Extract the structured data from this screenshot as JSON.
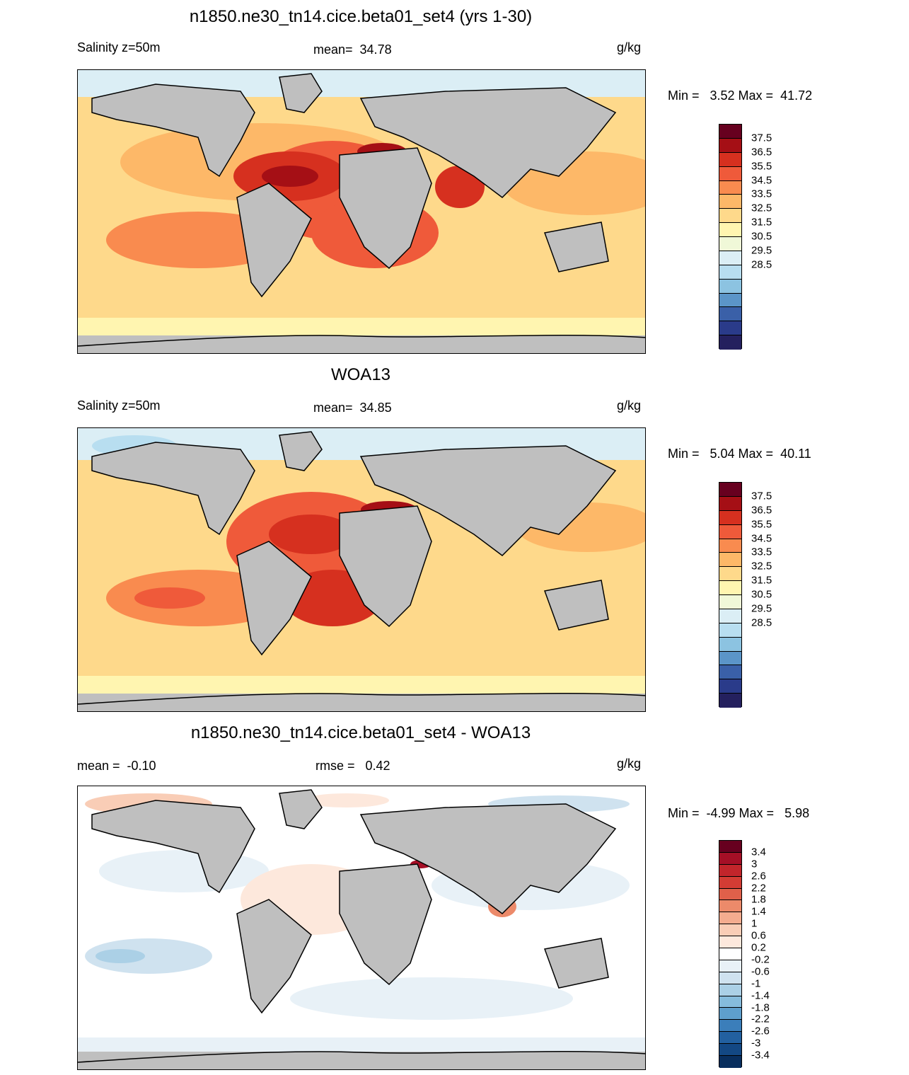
{
  "panels": [
    {
      "title": "n1850.ne30_tn14.cice.beta01_set4 (yrs 1-30)",
      "left_label": "Salinity z=50m",
      "center_label": "mean=  34.78",
      "right_label": "g/kg",
      "minmax": "Min =   3.52 Max =  41.72",
      "colorbar": {
        "labels": [
          "37.5",
          "36.5",
          "35.5",
          "34.5",
          "33.5",
          "32.5",
          "31.5",
          "30.5",
          "29.5",
          "28.5"
        ],
        "colors": [
          "#67001f",
          "#a50f15",
          "#d6301f",
          "#ef5a3a",
          "#f98b4f",
          "#fdb868",
          "#fed98b",
          "#fff5b0",
          "#f0f8d8",
          "#dbeef5",
          "#b8def0",
          "#8cc3e1",
          "#5b95c8",
          "#3a60a8",
          "#2a3b8a",
          "#24205e"
        ]
      }
    },
    {
      "title": "WOA13",
      "left_label": "Salinity z=50m",
      "center_label": "mean=  34.85",
      "right_label": "g/kg",
      "minmax": "Min =   5.04 Max =  40.11",
      "colorbar": {
        "labels": [
          "37.5",
          "36.5",
          "35.5",
          "34.5",
          "33.5",
          "32.5",
          "31.5",
          "30.5",
          "29.5",
          "28.5"
        ],
        "colors": [
          "#67001f",
          "#a50f15",
          "#d6301f",
          "#ef5a3a",
          "#f98b4f",
          "#fdb868",
          "#fed98b",
          "#fff5b0",
          "#f0f8d8",
          "#dbeef5",
          "#b8def0",
          "#8cc3e1",
          "#5b95c8",
          "#3a60a8",
          "#2a3b8a",
          "#24205e"
        ]
      }
    },
    {
      "title": "n1850.ne30_tn14.cice.beta01_set4 - WOA13",
      "left_label": "mean =  -0.10",
      "center_label": "rmse =   0.42",
      "right_label": "g/kg",
      "minmax": "Min =  -4.99 Max =   5.98",
      "colorbar": {
        "labels": [
          "3.4",
          "3",
          "2.6",
          "2.2",
          "1.8",
          "1.4",
          "1",
          "0.6",
          "0.2",
          "-0.2",
          "-0.6",
          "-1",
          "-1.4",
          "-1.8",
          "-2.2",
          "-2.6",
          "-3",
          "-3.4"
        ],
        "colors": [
          "#67001f",
          "#a50f26",
          "#c2252b",
          "#d33c34",
          "#e0604a",
          "#ec8a6a",
          "#f4ac8f",
          "#f9cdb6",
          "#fde8dc",
          "#ffffff",
          "#e8f1f7",
          "#cfe2ef",
          "#abd0e6",
          "#86bcdc",
          "#5e9fcd",
          "#3b7eba",
          "#2260a0",
          "#134884",
          "#082e5e"
        ]
      }
    }
  ]
}
